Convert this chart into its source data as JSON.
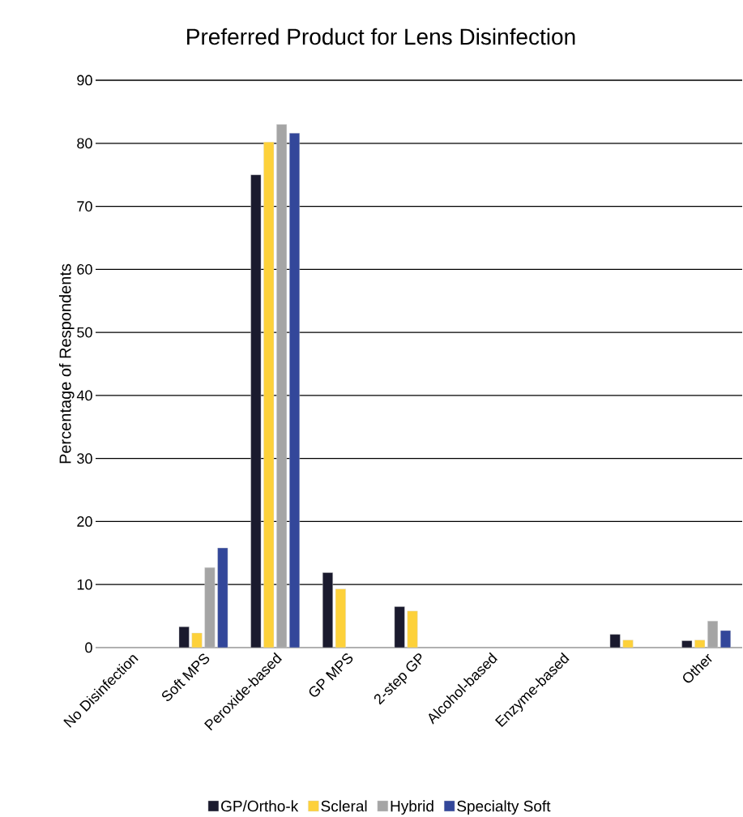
{
  "chart_data": {
    "type": "bar",
    "title": "Preferred Product for Lens Disinfection",
    "ylabel": "Percentage of Respondents",
    "categories": [
      "No Disinfection",
      "Soft MPS",
      "Peroxide-based",
      "GP MPS",
      "2-step GP",
      "Alcohol-based",
      "Enzyme-based",
      null,
      "Other"
    ],
    "series": [
      {
        "name": "GP/Ortho-k",
        "color": "#1a1a2e",
        "values": [
          null,
          3.3,
          75,
          11.9,
          6.5,
          null,
          null,
          2.1,
          1.1
        ]
      },
      {
        "name": "Scleral",
        "color": "#fdd13a",
        "values": [
          null,
          2.3,
          80.2,
          9.3,
          5.8,
          null,
          null,
          1.2,
          1.2
        ]
      },
      {
        "name": "Hybrid",
        "color": "#a5a5a5",
        "values": [
          null,
          12.7,
          83,
          null,
          null,
          null,
          null,
          null,
          4.2
        ]
      },
      {
        "name": "Specialty Soft",
        "color": "#33479a",
        "values": [
          null,
          15.8,
          81.6,
          null,
          null,
          null,
          null,
          null,
          2.7
        ]
      }
    ],
    "ylim": [
      0,
      90
    ],
    "yticks": [
      0,
      10,
      20,
      30,
      40,
      50,
      60,
      70,
      80,
      90
    ],
    "grid": "y",
    "legend": "bottom"
  }
}
